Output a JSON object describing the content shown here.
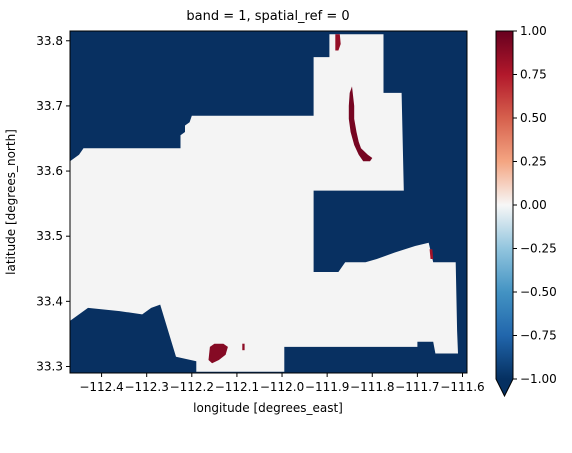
{
  "chart_data": {
    "type": "heatmap",
    "title": "band = 1, spatial_ref = 0",
    "xlabel": "longitude [degrees_east]",
    "ylabel": "latitude [degrees_north]",
    "xlim": [
      -112.47,
      -111.59
    ],
    "ylim": [
      33.29,
      33.815
    ],
    "x_ticks": [
      -112.4,
      -112.3,
      -112.2,
      -112.1,
      -112.0,
      -111.9,
      -111.8,
      -111.7,
      -111.6
    ],
    "x_tick_labels": [
      "−112.4",
      "−112.3",
      "−112.2",
      "−112.1",
      "−112.0",
      "−111.9",
      "−111.8",
      "−111.7",
      "−111.6"
    ],
    "y_ticks": [
      33.3,
      33.4,
      33.5,
      33.6,
      33.7,
      33.8
    ],
    "y_tick_labels": [
      "33.3",
      "33.4",
      "33.5",
      "33.6",
      "33.7",
      "33.8"
    ],
    "colorbar": {
      "colormap": "RdBu_r",
      "range": [
        -1.0,
        1.0
      ],
      "ticks": [
        -1.0,
        -0.75,
        -0.5,
        -0.25,
        0.0,
        0.25,
        0.5,
        0.75,
        1.0
      ],
      "tick_labels": [
        "−1.00",
        "−0.75",
        "−0.50",
        "−0.25",
        "0.00",
        "0.25",
        "0.50",
        "0.75",
        "1.00"
      ],
      "extend": "min"
    },
    "grid": false,
    "colors": {
      "low": "#083061",
      "mid": "#f4f4f4",
      "high": "#6e0a23",
      "axes_edge": "#000000"
    },
    "regions": [
      {
        "value": 0.0,
        "polygon": [
          [
            -112.47,
            33.615
          ],
          [
            -112.45,
            33.625
          ],
          [
            -112.44,
            33.635
          ],
          [
            -112.225,
            33.635
          ],
          [
            -112.225,
            33.655
          ],
          [
            -112.215,
            33.66
          ],
          [
            -112.215,
            33.67
          ],
          [
            -112.205,
            33.675
          ],
          [
            -112.2,
            33.685
          ],
          [
            -111.93,
            33.685
          ],
          [
            -111.93,
            33.775
          ],
          [
            -111.895,
            33.775
          ],
          [
            -111.895,
            33.81
          ],
          [
            -111.775,
            33.81
          ],
          [
            -111.775,
            33.72
          ],
          [
            -111.735,
            33.72
          ],
          [
            -111.73,
            33.57
          ],
          [
            -111.93,
            33.57
          ],
          [
            -111.93,
            33.445
          ],
          [
            -111.875,
            33.445
          ],
          [
            -111.86,
            33.46
          ],
          [
            -111.815,
            33.46
          ],
          [
            -111.79,
            33.465
          ],
          [
            -111.75,
            33.475
          ],
          [
            -111.705,
            33.485
          ],
          [
            -111.675,
            33.49
          ],
          [
            -111.665,
            33.46
          ],
          [
            -111.615,
            33.46
          ],
          [
            -111.612,
            33.355
          ],
          [
            -111.61,
            33.32
          ],
          [
            -111.66,
            33.32
          ],
          [
            -111.665,
            33.338
          ],
          [
            -111.7,
            33.338
          ],
          [
            -111.7,
            33.33
          ],
          [
            -111.995,
            33.33
          ],
          [
            -111.995,
            33.292
          ],
          [
            -112.19,
            33.292
          ],
          [
            -112.19,
            33.308
          ],
          [
            -112.235,
            33.315
          ],
          [
            -112.27,
            33.395
          ],
          [
            -112.29,
            33.39
          ],
          [
            -112.31,
            33.38
          ],
          [
            -112.36,
            33.385
          ],
          [
            -112.43,
            33.39
          ],
          [
            -112.47,
            33.37
          ]
        ]
      },
      {
        "value": 0.9,
        "polygon": [
          [
            -111.845,
            33.73
          ],
          [
            -111.84,
            33.7
          ],
          [
            -111.84,
            33.68
          ],
          [
            -111.835,
            33.66
          ],
          [
            -111.83,
            33.645
          ],
          [
            -111.825,
            33.635
          ],
          [
            -111.81,
            33.625
          ],
          [
            -111.8,
            33.62
          ],
          [
            -111.805,
            33.615
          ],
          [
            -111.82,
            33.615
          ],
          [
            -111.83,
            33.625
          ],
          [
            -111.84,
            33.64
          ],
          [
            -111.848,
            33.66
          ],
          [
            -111.852,
            33.68
          ],
          [
            -111.852,
            33.7
          ],
          [
            -111.85,
            33.72
          ]
        ]
      },
      {
        "value": 0.7,
        "polygon": [
          [
            -111.882,
            33.81
          ],
          [
            -111.872,
            33.81
          ],
          [
            -111.87,
            33.795
          ],
          [
            -111.875,
            33.785
          ],
          [
            -111.882,
            33.785
          ]
        ]
      },
      {
        "value": 0.8,
        "polygon": [
          [
            -112.16,
            33.33
          ],
          [
            -112.15,
            33.335
          ],
          [
            -112.13,
            33.335
          ],
          [
            -112.12,
            33.33
          ],
          [
            -112.125,
            33.318
          ],
          [
            -112.14,
            33.31
          ],
          [
            -112.155,
            33.305
          ],
          [
            -112.163,
            33.31
          ]
        ]
      },
      {
        "value": 0.6,
        "polygon": [
          [
            -111.673,
            33.48
          ],
          [
            -111.667,
            33.48
          ],
          [
            -111.665,
            33.465
          ],
          [
            -111.671,
            33.465
          ]
        ]
      },
      {
        "value": 0.75,
        "polygon": [
          [
            -112.088,
            33.335
          ],
          [
            -112.083,
            33.335
          ],
          [
            -112.083,
            33.325
          ],
          [
            -112.088,
            33.325
          ]
        ]
      }
    ]
  }
}
